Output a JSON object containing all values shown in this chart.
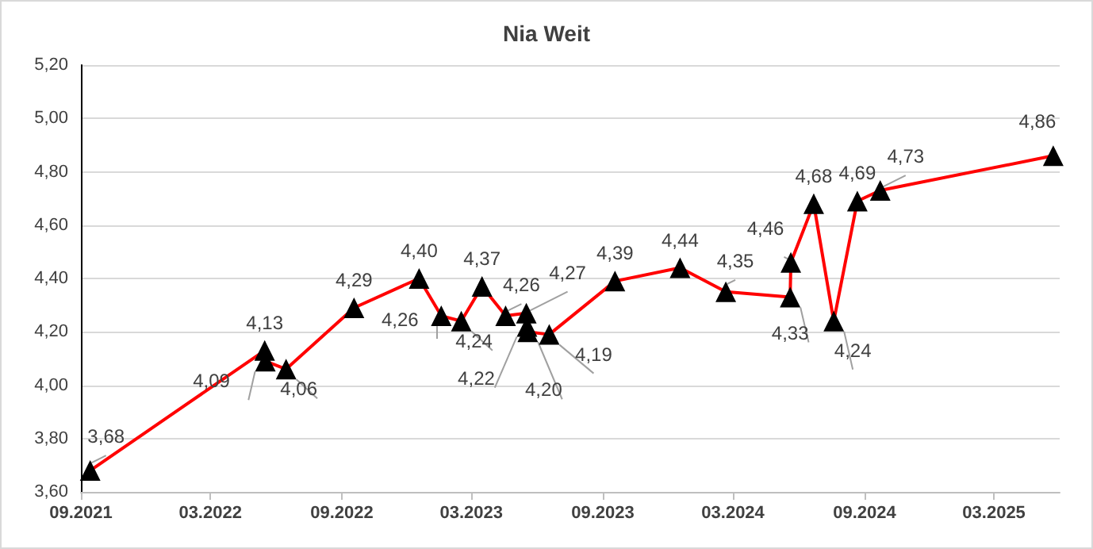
{
  "chart_data": {
    "type": "line",
    "title": "Nia Weit",
    "x": [
      "2021-09-14",
      "2022-05-16",
      "2022-05-17",
      "2022-06-15",
      "2022-09-18",
      "2022-12-18",
      "2023-01-18",
      "2023-02-15",
      "2023-03-16",
      "2023-04-18",
      "2023-05-17",
      "2023-05-18",
      "2023-05-19",
      "2023-06-18",
      "2023-09-18",
      "2023-12-18",
      "2024-02-20",
      "2024-05-20",
      "2024-05-21",
      "2024-06-22",
      "2024-07-20",
      "2024-08-22",
      "2024-09-23",
      "2025-05-23"
    ],
    "series": [
      {
        "color": "#ff0000",
        "values": [
          3.68,
          4.13,
          4.09,
          4.06,
          4.29,
          4.4,
          4.26,
          4.24,
          4.37,
          4.26,
          4.27,
          4.22,
          4.2,
          4.19,
          4.39,
          4.44,
          4.35,
          4.33,
          4.46,
          4.68,
          4.24,
          4.69,
          4.73,
          4.86
        ],
        "value_labels": [
          "3,68",
          "4,13",
          "4,09",
          "4,06",
          "4,29",
          "4,40",
          "4,26",
          "4,24",
          "4,37",
          "4,26",
          "4,27",
          "4,22",
          "4,20",
          "4,19",
          "4,39",
          "4,44",
          "4,35",
          "4,33",
          "4,46",
          "4,68",
          "4,24",
          "4,69",
          "4,73",
          "4,86"
        ]
      }
    ],
    "xlim": [
      "2021-09-01",
      "2025-06-01"
    ],
    "xticks": [
      {
        "value": "2021-09-01",
        "label": "09.2021"
      },
      {
        "value": "2022-03-01",
        "label": "03.2022"
      },
      {
        "value": "2022-09-01",
        "label": "09.2022"
      },
      {
        "value": "2023-03-01",
        "label": "03.2023"
      },
      {
        "value": "2023-09-01",
        "label": "09.2023"
      },
      {
        "value": "2024-03-01",
        "label": "03.2024"
      },
      {
        "value": "2024-09-01",
        "label": "09.2024"
      },
      {
        "value": "2025-03-01",
        "label": "03.2025"
      }
    ],
    "ylim": [
      3.6,
      5.2
    ],
    "yticks": [
      {
        "value": 3.6,
        "label": "3,60"
      },
      {
        "value": 3.8,
        "label": "3,80"
      },
      {
        "value": 4.0,
        "label": "4,00"
      },
      {
        "value": 4.2,
        "label": "4,20"
      },
      {
        "value": 4.4,
        "label": "4,40"
      },
      {
        "value": 4.6,
        "label": "4,60"
      },
      {
        "value": 4.8,
        "label": "4,80"
      },
      {
        "value": 5.0,
        "label": "5,00"
      },
      {
        "value": 5.2,
        "label": "5,20"
      }
    ],
    "grid": "y",
    "marker": "triangle",
    "line_style": "solid"
  }
}
